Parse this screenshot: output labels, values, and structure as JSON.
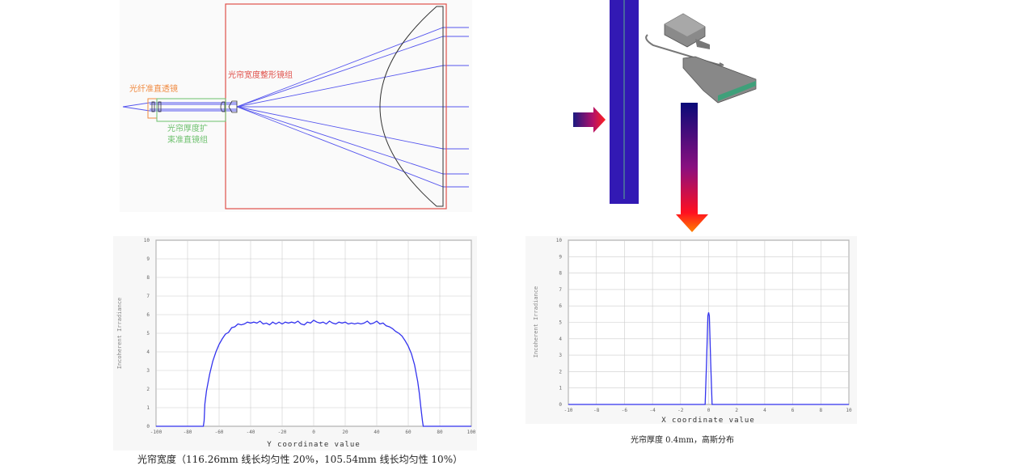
{
  "diagram": {
    "label_fiber_collimator": "光纤准直透镜",
    "label_thickness_group_line1": "光帘厚度扩",
    "label_thickness_group_line2": "束准直镜组",
    "label_width_group": "光帘宽度整形镜组",
    "colors": {
      "fiber": "#f08a40",
      "thickness": "#6cc06c",
      "width": "#e0504a",
      "ray": "#5555ee",
      "sheet": "#3219b4"
    }
  },
  "chart_data": [
    {
      "type": "line",
      "title": "",
      "xlabel": "Y coordinate value",
      "ylabel": "Incoherent Irradiance",
      "xlim": [
        -100,
        100
      ],
      "ylim": [
        0,
        10
      ],
      "xticks": [
        -100,
        -80,
        -60,
        -40,
        -20,
        0,
        20,
        40,
        60,
        80,
        100
      ],
      "yticks": [
        0,
        1,
        2,
        3,
        4,
        5,
        6,
        7,
        8,
        9,
        10
      ],
      "grid": true,
      "caption": "光帘宽度（116.26mm 线长均匀性 20%，105.54mm 线长均匀性 10%）",
      "series": [
        {
          "name": "irradiance",
          "color": "#3333ee",
          "points": [
            [
              -100,
              0
            ],
            [
              -70,
              0
            ],
            [
              -69.5,
              0.3
            ],
            [
              -69,
              1.2
            ],
            [
              -68,
              1.9
            ],
            [
              -66,
              2.8
            ],
            [
              -64,
              3.5
            ],
            [
              -62,
              4.0
            ],
            [
              -60,
              4.4
            ],
            [
              -58,
              4.7
            ],
            [
              -56,
              4.95
            ],
            [
              -54,
              5.05
            ],
            [
              -52,
              5.3
            ],
            [
              -50,
              5.35
            ],
            [
              -48,
              5.5
            ],
            [
              -46,
              5.45
            ],
            [
              -44,
              5.5
            ],
            [
              -42,
              5.6
            ],
            [
              -40,
              5.55
            ],
            [
              -38,
              5.6
            ],
            [
              -36,
              5.55
            ],
            [
              -34,
              5.65
            ],
            [
              -32,
              5.5
            ],
            [
              -30,
              5.55
            ],
            [
              -28,
              5.45
            ],
            [
              -26,
              5.6
            ],
            [
              -24,
              5.5
            ],
            [
              -22,
              5.6
            ],
            [
              -20,
              5.5
            ],
            [
              -18,
              5.6
            ],
            [
              -16,
              5.55
            ],
            [
              -14,
              5.6
            ],
            [
              -12,
              5.55
            ],
            [
              -10,
              5.65
            ],
            [
              -8,
              5.5
            ],
            [
              -6,
              5.45
            ],
            [
              -4,
              5.6
            ],
            [
              -2,
              5.55
            ],
            [
              0,
              5.7
            ],
            [
              2,
              5.6
            ],
            [
              4,
              5.55
            ],
            [
              6,
              5.6
            ],
            [
              8,
              5.5
            ],
            [
              10,
              5.65
            ],
            [
              12,
              5.55
            ],
            [
              14,
              5.5
            ],
            [
              16,
              5.6
            ],
            [
              18,
              5.55
            ],
            [
              20,
              5.6
            ],
            [
              22,
              5.5
            ],
            [
              24,
              5.55
            ],
            [
              26,
              5.5
            ],
            [
              28,
              5.55
            ],
            [
              30,
              5.5
            ],
            [
              32,
              5.55
            ],
            [
              34,
              5.65
            ],
            [
              36,
              5.5
            ],
            [
              38,
              5.55
            ],
            [
              40,
              5.65
            ],
            [
              42,
              5.5
            ],
            [
              44,
              5.55
            ],
            [
              46,
              5.4
            ],
            [
              48,
              5.35
            ],
            [
              50,
              5.25
            ],
            [
              52,
              5.1
            ],
            [
              54,
              5.0
            ],
            [
              56,
              4.85
            ],
            [
              58,
              4.6
            ],
            [
              60,
              4.3
            ],
            [
              62,
              3.9
            ],
            [
              64,
              3.3
            ],
            [
              66,
              2.4
            ],
            [
              67,
              1.8
            ],
            [
              68,
              1.0
            ],
            [
              69,
              0.3
            ],
            [
              69.5,
              0
            ],
            [
              100,
              0
            ]
          ]
        }
      ]
    },
    {
      "type": "line",
      "title": "",
      "xlabel": "X coordinate value",
      "ylabel": "Incoherent Irradiance",
      "xlim": [
        -10,
        10
      ],
      "ylim": [
        0,
        10
      ],
      "xticks": [
        -10,
        -8,
        -6,
        -4,
        -2,
        0,
        2,
        4,
        6,
        8,
        10
      ],
      "yticks": [
        0,
        1,
        2,
        3,
        4,
        5,
        6,
        7,
        8,
        9,
        10
      ],
      "grid": true,
      "caption": "光帘厚度 0.4mm，高斯分布",
      "series": [
        {
          "name": "irradiance",
          "color": "#3333ee",
          "points": [
            [
              -10,
              0
            ],
            [
              -0.25,
              0
            ],
            [
              -0.15,
              2.5
            ],
            [
              -0.05,
              5.4
            ],
            [
              0,
              5.6
            ],
            [
              0.05,
              5.4
            ],
            [
              0.15,
              2.5
            ],
            [
              0.25,
              0
            ],
            [
              10,
              0
            ]
          ]
        }
      ]
    }
  ]
}
